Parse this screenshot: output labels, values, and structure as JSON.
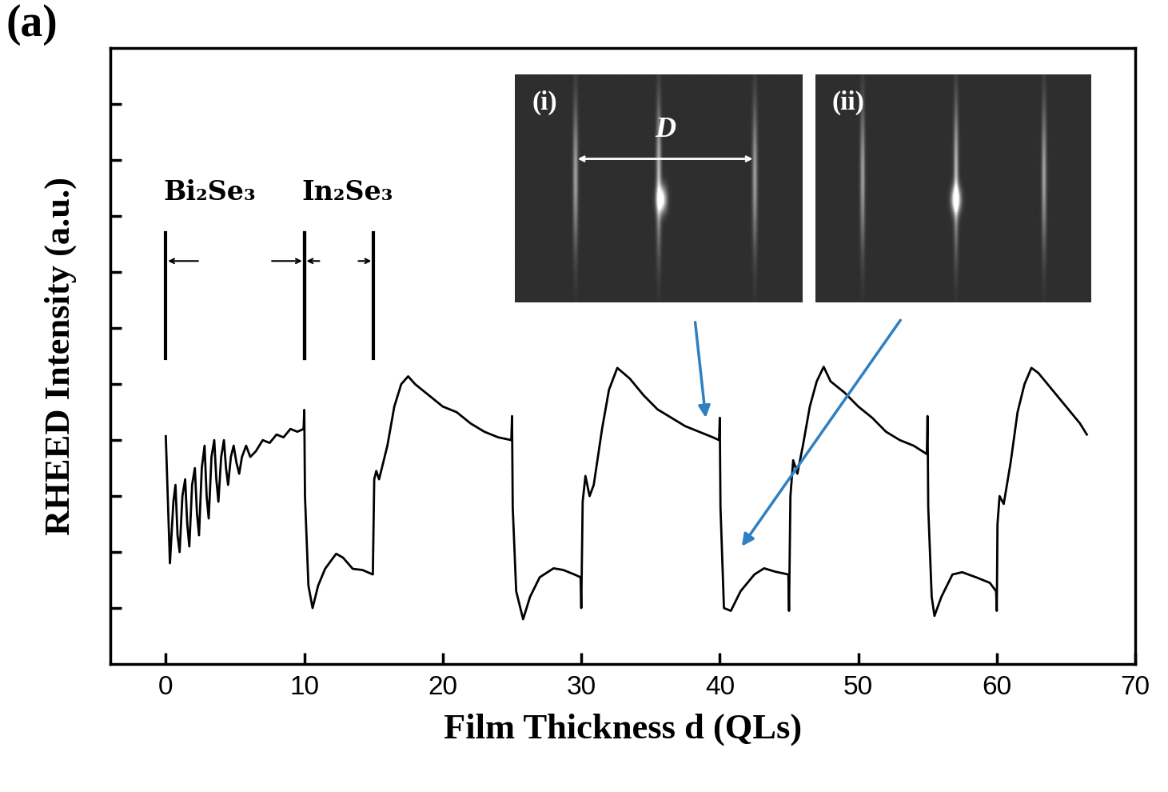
{
  "panel_label": "(a)",
  "chart_data": {
    "type": "line",
    "xlabel": "Film Thickness d (QLs)",
    "ylabel": "RHEED Intensity (a.u.)",
    "xlim": [
      -4,
      70
    ],
    "ylim": [
      0,
      11
    ],
    "xticks": [
      0,
      10,
      20,
      30,
      40,
      50,
      60,
      70
    ],
    "yticks": [
      1,
      2,
      3,
      4,
      5,
      6,
      7,
      8,
      9,
      10
    ],
    "tick_labels": "x",
    "color": "#000000",
    "x": [
      0,
      0.3,
      0.55,
      0.7,
      0.85,
      1.0,
      1.2,
      1.4,
      1.55,
      1.7,
      1.9,
      2.1,
      2.25,
      2.4,
      2.6,
      2.8,
      2.95,
      3.1,
      3.3,
      3.5,
      3.65,
      3.8,
      4.0,
      4.2,
      4.35,
      4.5,
      4.7,
      4.9,
      5.1,
      5.3,
      5.5,
      5.8,
      6.1,
      6.5,
      7.0,
      7.5,
      8.0,
      8.5,
      9.0,
      9.5,
      9.95,
      10.0,
      10.05,
      10.3,
      10.6,
      11.0,
      11.5,
      12.3,
      12.8,
      13.5,
      14.2,
      14.95,
      15.0,
      15.05,
      15.2,
      15.4,
      16.0,
      16.5,
      17.0,
      17.5,
      18.0,
      19.0,
      20.0,
      21.0,
      22.0,
      23.0,
      24.0,
      24.95,
      25.0,
      25.05,
      25.3,
      25.8,
      26.3,
      27.0,
      28.0,
      28.7,
      29.5,
      29.95,
      30.0,
      30.1,
      30.3,
      30.6,
      30.9,
      31.5,
      32.0,
      32.6,
      33.5,
      34.5,
      35.5,
      36.5,
      37.5,
      38.5,
      39.5,
      39.95,
      40.0,
      40.05,
      40.3,
      40.8,
      41.5,
      42.5,
      43.2,
      44.0,
      44.95,
      45.0,
      45.1,
      45.3,
      45.6,
      46.0,
      46.5,
      47.0,
      47.5,
      48.0,
      49.0,
      50.0,
      51.0,
      52.0,
      53.0,
      54.0,
      54.95,
      55.0,
      55.05,
      55.3,
      55.5,
      56.0,
      56.8,
      57.5,
      58.5,
      59.5,
      59.95,
      60.0,
      60.05,
      60.2,
      60.5,
      61.0,
      61.5,
      62.0,
      62.5,
      63.0,
      64.0,
      65.0,
      66.0,
      66.5
    ],
    "values": [
      4.07,
      1.8,
      2.9,
      3.2,
      2.3,
      2.0,
      3.0,
      3.3,
      2.5,
      2.1,
      3.2,
      3.5,
      2.7,
      2.3,
      3.5,
      3.9,
      3.0,
      2.6,
      3.7,
      4.0,
      3.3,
      2.9,
      3.7,
      4.0,
      3.5,
      3.2,
      3.7,
      3.9,
      3.6,
      3.4,
      3.7,
      3.9,
      3.7,
      3.8,
      4.0,
      3.95,
      4.1,
      4.05,
      4.2,
      4.15,
      4.2,
      4.54,
      3.0,
      1.4,
      1.0,
      1.4,
      1.7,
      1.97,
      1.9,
      1.7,
      1.68,
      1.6,
      2.4,
      3.3,
      3.45,
      3.3,
      3.9,
      4.6,
      5.0,
      5.14,
      5.0,
      4.8,
      4.6,
      4.5,
      4.3,
      4.15,
      4.05,
      4.0,
      4.43,
      2.8,
      1.3,
      0.8,
      1.2,
      1.55,
      1.71,
      1.68,
      1.6,
      1.55,
      1.0,
      2.9,
      3.36,
      3.0,
      3.2,
      4.2,
      4.9,
      5.29,
      5.1,
      4.8,
      4.55,
      4.4,
      4.25,
      4.15,
      4.05,
      4.0,
      4.4,
      2.8,
      1.0,
      0.95,
      1.3,
      1.6,
      1.71,
      1.65,
      1.6,
      0.95,
      3.0,
      3.64,
      3.4,
      3.9,
      4.6,
      5.05,
      5.31,
      5.05,
      4.85,
      4.6,
      4.4,
      4.15,
      4.0,
      3.9,
      3.75,
      4.43,
      2.8,
      1.2,
      0.86,
      1.2,
      1.6,
      1.64,
      1.55,
      1.45,
      1.3,
      0.95,
      2.5,
      3.0,
      2.86,
      3.6,
      4.5,
      5.0,
      5.29,
      5.2,
      4.9,
      4.6,
      4.3,
      4.1
    ],
    "regions": [
      {
        "text": "Bi₂Se₃",
        "start": 0,
        "end": 10
      },
      {
        "text": "In₂Se₃",
        "start": 10,
        "end": 15
      }
    ],
    "insets": [
      {
        "label": "(i)",
        "x": 39,
        "y": 4.36,
        "distance_label": "D"
      },
      {
        "label": "(ii)",
        "x": 41.5,
        "y": 2.07
      }
    ]
  }
}
